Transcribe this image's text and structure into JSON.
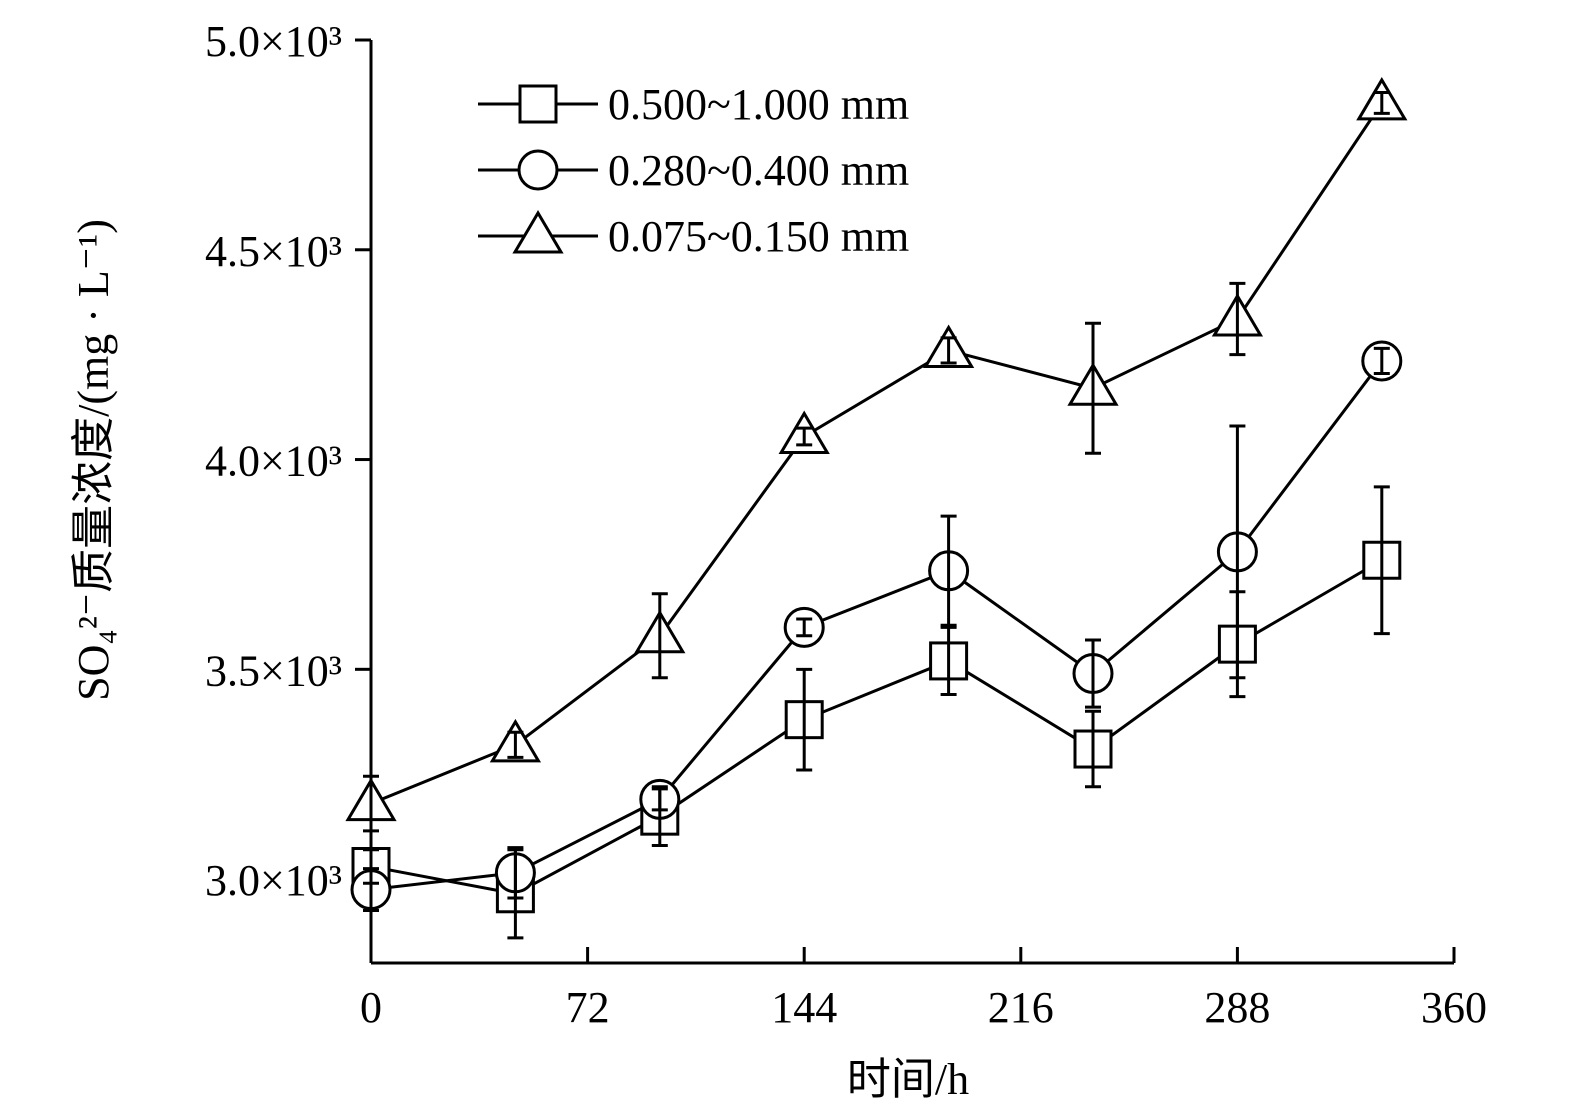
{
  "chart_data": {
    "type": "line",
    "xlabel": "时间/h",
    "ylabel": "SO₄²⁻质量浓度/(mg · L⁻¹)",
    "x": [
      0,
      48,
      96,
      144,
      192,
      240,
      288,
      336
    ],
    "xlim": [
      0,
      360
    ],
    "ylim": [
      2800,
      5000
    ],
    "xticks": [
      0,
      72,
      144,
      216,
      288,
      360
    ],
    "xtick_labels": [
      "0",
      "72",
      "144",
      "216",
      "288",
      "360"
    ],
    "yticks": [
      3000,
      3500,
      4000,
      4500,
      5000
    ],
    "ytick_labels": [
      "3.0×10³",
      "3.5×10³",
      "4.0×10³",
      "4.5×10³",
      "5.0×10³"
    ],
    "grid": false,
    "legend_position": "top-left",
    "colors": {
      "line": "#000000",
      "marker_fill": "#ffffff"
    },
    "series": [
      {
        "name": "0.500~1.000 mm",
        "marker": "square",
        "values": [
          3030,
          2965,
          3150,
          3380,
          3520,
          3310,
          3560,
          3760
        ],
        "error": [
          40,
          105,
          70,
          120,
          80,
          90,
          125,
          175
        ]
      },
      {
        "name": "0.280~0.400 mm",
        "marker": "circle",
        "values": [
          2975,
          3015,
          3190,
          3600,
          3735,
          3490,
          3780,
          4235
        ],
        "error": [
          50,
          60,
          25,
          20,
          130,
          80,
          300,
          30
        ]
      },
      {
        "name": "0.075~0.150 mm",
        "marker": "triangle",
        "values": [
          3180,
          3320,
          3580,
          4055,
          4260,
          4170,
          4335,
          4850
        ],
        "error": [
          65,
          30,
          100,
          20,
          30,
          155,
          85,
          25
        ]
      }
    ]
  }
}
